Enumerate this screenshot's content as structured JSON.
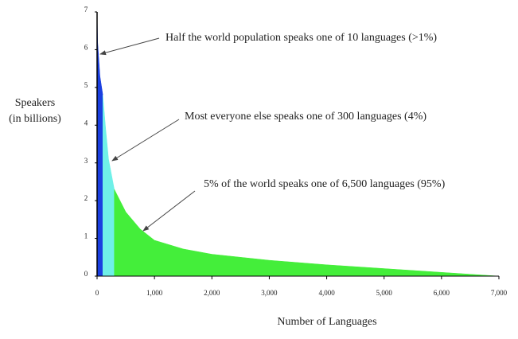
{
  "chart_data": {
    "type": "area",
    "xlabel": "Number of Languages",
    "ylabel": [
      "Speakers",
      "(in billions)"
    ],
    "annotations": [
      "Half the world population speaks one of 10 languages (>1%)",
      "Most everyone else speaks one of 300 languages (4%)",
      "5% of the world speaks one of 6,500 languages (95%)"
    ],
    "series": [
      {
        "color": "#1a3fe0",
        "x": [
          0,
          10,
          50,
          100
        ],
        "values": [
          7,
          6.2,
          5.3,
          4.8
        ]
      },
      {
        "color": "#6ff0e8",
        "x": [
          100,
          150,
          200,
          300
        ],
        "values": [
          4.8,
          3.9,
          3.1,
          2.3
        ]
      },
      {
        "color": "#44ee3a",
        "x": [
          300,
          500,
          750,
          1000,
          1500,
          2000,
          3000,
          4000,
          5000,
          6000,
          7000
        ],
        "values": [
          2.3,
          1.7,
          1.25,
          0.95,
          0.72,
          0.58,
          0.42,
          0.3,
          0.2,
          0.1,
          0
        ]
      }
    ],
    "xlim": [
      0,
      7000
    ],
    "xticks": [
      0,
      {
        "value": 1000,
        "label": "1,000"
      },
      {
        "value": 2000,
        "label": "2,000"
      },
      {
        "value": 3000,
        "label": "3,000"
      },
      {
        "value": 4000,
        "label": "4,000"
      },
      {
        "value": 5000,
        "label": "5,000"
      },
      {
        "value": 6000,
        "label": "6,000"
      },
      {
        "value": 7000,
        "label": "7,000"
      }
    ],
    "ylim": [
      0,
      7
    ],
    "yticks": [
      0,
      1,
      2,
      3,
      4,
      5,
      6,
      7
    ]
  }
}
